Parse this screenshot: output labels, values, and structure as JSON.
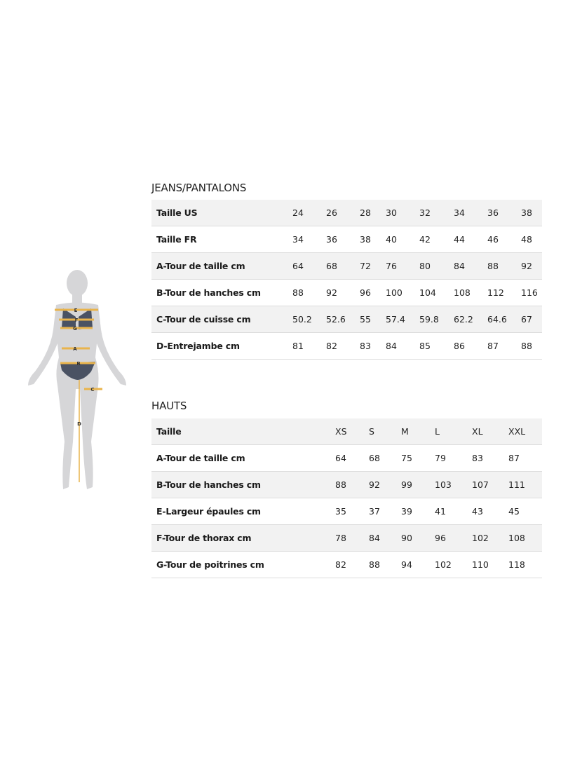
{
  "jeans": {
    "title": "JEANS/PANTALONS",
    "rows": [
      {
        "label": "Taille US",
        "values": [
          "24",
          "26",
          "28",
          "30",
          "32",
          "34",
          "36",
          "38"
        ]
      },
      {
        "label": "Taille FR",
        "values": [
          "34",
          "36",
          "38",
          "40",
          "42",
          "44",
          "46",
          "48"
        ]
      },
      {
        "label": "A-Tour de taille cm",
        "values": [
          "64",
          "68",
          "72",
          "76",
          "80",
          "84",
          "88",
          "92"
        ]
      },
      {
        "label": "B-Tour de hanches cm",
        "values": [
          "88",
          "92",
          "96",
          "100",
          "104",
          "108",
          "112",
          "116"
        ]
      },
      {
        "label": "C-Tour de cuisse cm",
        "values": [
          "50.2",
          "52.6",
          "55",
          "57.4",
          "59.8",
          "62.2",
          "64.6",
          "67"
        ]
      },
      {
        "label": "D-Entrejambe cm",
        "values": [
          "81",
          "82",
          "83",
          "84",
          "85",
          "86",
          "87",
          "88"
        ]
      }
    ]
  },
  "hauts": {
    "title": "HAUTS",
    "rows": [
      {
        "label": "Taille",
        "values": [
          "XS",
          "S",
          "M",
          "L",
          "XL",
          "XXL"
        ]
      },
      {
        "label": "A-Tour de taille cm",
        "values": [
          "64",
          "68",
          "75",
          "79",
          "83",
          "87"
        ]
      },
      {
        "label": "B-Tour de hanches cm",
        "values": [
          "88",
          "92",
          "99",
          "103",
          "107",
          "111"
        ]
      },
      {
        "label": "E-Largeur épaules cm",
        "values": [
          "35",
          "37",
          "39",
          "41",
          "43",
          "45"
        ]
      },
      {
        "label": "F-Tour de thorax cm",
        "values": [
          "78",
          "84",
          "90",
          "96",
          "102",
          "108"
        ]
      },
      {
        "label": "G-Tour de poitrines cm",
        "values": [
          "82",
          "88",
          "94",
          "102",
          "110",
          "118"
        ]
      }
    ]
  },
  "figure": {
    "markers": [
      "E",
      "F",
      "G",
      "A",
      "B",
      "C",
      "D"
    ],
    "colors": {
      "body": "#d6d6d8",
      "swimsuit": "#4a5263",
      "measure": "#e9b44c"
    }
  }
}
